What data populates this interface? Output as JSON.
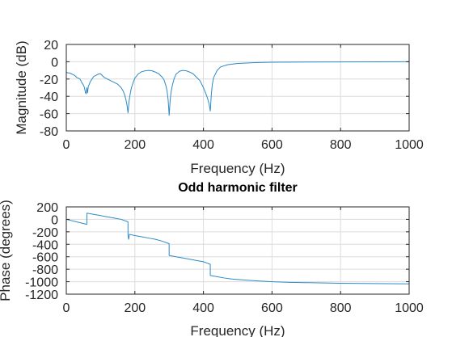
{
  "chart_data": [
    {
      "type": "line",
      "title": "",
      "xlabel": "Frequency (Hz)",
      "ylabel": "Magnitude (dB)",
      "xlim": [
        0,
        1000
      ],
      "ylim": [
        -80,
        20
      ],
      "xticks": [
        0,
        200,
        400,
        600,
        800,
        1000
      ],
      "yticks": [
        20,
        0,
        -20,
        -40,
        -60,
        -80
      ],
      "grid": true,
      "color": "#2c8ac6",
      "series": [
        {
          "x": [
            0,
            5,
            10,
            15,
            20,
            25,
            30,
            35,
            40,
            45,
            50,
            53,
            56,
            58,
            60,
            62,
            64,
            67,
            70,
            75,
            80,
            85,
            90,
            95,
            100,
            105,
            110,
            120,
            130,
            140,
            150,
            160,
            166,
            170,
            174,
            177,
            180,
            183,
            186,
            190,
            195,
            200,
            210,
            220,
            230,
            240,
            250,
            260,
            270,
            280,
            285,
            290,
            294,
            297,
            300,
            303,
            306,
            310,
            315,
            320,
            330,
            340,
            350,
            360,
            370,
            380,
            390,
            400,
            405,
            410,
            414,
            417,
            420,
            423,
            426,
            430,
            440,
            450,
            470,
            500,
            550,
            600,
            700,
            800,
            900,
            1000
          ],
          "y": [
            -12,
            -13,
            -13,
            -14,
            -15,
            -16,
            -18,
            -19,
            -20,
            -24,
            -27,
            -30,
            -36,
            -37,
            -30,
            -36,
            -29,
            -26,
            -23,
            -20,
            -17,
            -16,
            -15,
            -14,
            -14,
            -16,
            -18,
            -20,
            -22,
            -24,
            -26,
            -30,
            -34,
            -38,
            -44,
            -50,
            -59,
            -46,
            -38,
            -30,
            -24,
            -19,
            -14,
            -11.5,
            -10.5,
            -10,
            -10.5,
            -12,
            -14,
            -18,
            -21,
            -27,
            -34,
            -44,
            -62,
            -44,
            -34,
            -26,
            -19,
            -14.5,
            -11,
            -10,
            -10.5,
            -12,
            -14,
            -18,
            -22,
            -30,
            -35,
            -40,
            -45,
            -50,
            -57,
            -38,
            -26,
            -18,
            -10,
            -6,
            -3.5,
            -2,
            -1,
            -0.6,
            -0.3,
            -0.2,
            -0.1,
            0
          ]
        }
      ]
    },
    {
      "type": "line",
      "title": "Odd harmonic filter",
      "xlabel": "Frequency (Hz)",
      "ylabel": "Phase (degrees)",
      "xlim": [
        0,
        1000
      ],
      "ylim": [
        -1200,
        200
      ],
      "xticks": [
        0,
        200,
        400,
        600,
        800,
        1000
      ],
      "yticks": [
        200,
        0,
        -200,
        -400,
        -600,
        -800,
        -1000,
        -1200
      ],
      "grid": true,
      "color": "#2c8ac6",
      "series": [
        {
          "x": [
            0,
            30,
            59.9,
            60,
            80,
            100,
            120,
            140,
            160,
            179.9,
            180,
            182,
            184,
            200,
            220,
            240,
            260,
            280,
            299.9,
            300,
            320,
            340,
            360,
            380,
            400,
            419.9,
            420,
            440,
            460,
            480,
            500,
            550,
            600,
            650,
            700,
            800,
            900,
            1000
          ],
          "y": [
            0,
            -40,
            -80,
            100,
            80,
            60,
            40,
            20,
            0,
            -40,
            -260,
            -320,
            -240,
            -260,
            -280,
            -300,
            -320,
            -350,
            -390,
            -580,
            -600,
            -620,
            -640,
            -660,
            -680,
            -720,
            -900,
            -920,
            -940,
            -955,
            -965,
            -985,
            -1000,
            -1010,
            -1015,
            -1025,
            -1030,
            -1035
          ]
        }
      ]
    }
  ]
}
